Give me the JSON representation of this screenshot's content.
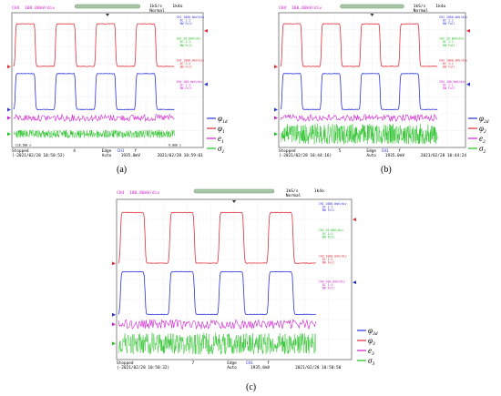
{
  "colors": {
    "ch1": "#2a34d8",
    "ch2": "#20c020",
    "ch3": "#e0303a",
    "ch4": "#d020d0",
    "grid": "#cfcfcf",
    "frame": "#555555",
    "bar": "#6a9a6a"
  },
  "panels": [
    {
      "id": "a",
      "caption": "(a)",
      "header": {
        "channel": "CH4",
        "scale": "100.00mV/div",
        "rate": "1kS/s",
        "points": "1k4o",
        "mode": "Normal"
      },
      "channel_info": [
        {
          "ch": "CH1",
          "line": "1000.0mV/div",
          "sub": "DC 1:1",
          "bw": "BW Full"
        },
        {
          "ch": "CH2",
          "line": "20.0mV/div",
          "sub": "DC 1:1",
          "bw": "BW Full"
        },
        {
          "ch": "CH3",
          "line": "1000.0mV/div",
          "sub": "DC 1:1",
          "bw": "BW Full"
        },
        {
          "ch": "CH4",
          "line": "100.0mV/div",
          "sub": "DC 1:1",
          "bw": "BW Full"
        }
      ],
      "corner_left": "-116.500 s",
      "corner_right": "6.000 s",
      "footer": {
        "state": "Stopped",
        "state_num": "4",
        "left_date": "2021/02/28 10:50:52",
        "trig": "Edge",
        "trig_ch": "CH1",
        "trig_sym": "f",
        "trig_mode": "Auto",
        "trig_val": "1935.0mV",
        "right_date": "2021/02/28 10:59:01"
      },
      "legend": [
        {
          "sym": "φ",
          "sub": "1d",
          "color": "#2a34d8"
        },
        {
          "sym": "φ",
          "sub": "1",
          "color": "#e0303a"
        },
        {
          "sym": "e",
          "sub": "1",
          "color": "#d020d0"
        },
        {
          "sym": "σ",
          "sub": "1",
          "color": "#20c020"
        }
      ]
    },
    {
      "id": "b",
      "caption": "(b)",
      "header": {
        "channel": "CH4",
        "scale": "100.00mV/div",
        "rate": "1kS/s",
        "points": "1k4o",
        "mode": "Normal"
      },
      "channel_info": [
        {
          "ch": "CH1",
          "line": "1000.0mV/div",
          "sub": "DC 1:1",
          "bw": "BW Full"
        },
        {
          "ch": "CH2",
          "line": "20.0mV/div",
          "sub": "DC 1:1",
          "bw": "BW Full"
        },
        {
          "ch": "CH3",
          "line": "1000.0mV/div",
          "sub": "DC 1:1",
          "bw": "BW Full"
        },
        {
          "ch": "CH4",
          "line": "100.0mV/div",
          "sub": "DC 1:1",
          "bw": "BW Full"
        }
      ],
      "corner_left": "",
      "corner_right": "",
      "footer": {
        "state": "Stopped",
        "state_num": "5",
        "left_date": "2021/02/28 10:44:16",
        "trig": "Edge",
        "trig_ch": "CH1",
        "trig_sym": "f",
        "trig_mode": "Auto",
        "trig_val": "1935.0mV",
        "right_date": "2021/02/28 10:44:24"
      },
      "legend": [
        {
          "sym": "φ",
          "sub": "2d",
          "color": "#2a34d8"
        },
        {
          "sym": "φ",
          "sub": "2",
          "color": "#e0303a"
        },
        {
          "sym": "e",
          "sub": "2",
          "color": "#d020d0"
        },
        {
          "sym": "σ",
          "sub": "2",
          "color": "#20c020"
        }
      ]
    },
    {
      "id": "c",
      "caption": "(c)",
      "header": {
        "channel": "CH4",
        "scale": "100.00mV/div",
        "rate": "1kS/s",
        "points": "1k4o",
        "mode": "Normal"
      },
      "channel_info": [
        {
          "ch": "CH1",
          "line": "1000.0mV/div",
          "sub": "DC 1:1",
          "bw": "BW Full"
        },
        {
          "ch": "CH2",
          "line": "20.0mV/div",
          "sub": "DC 1:1",
          "bw": "BW Full"
        },
        {
          "ch": "CH3",
          "line": "1000.0mV/div",
          "sub": "DC 1:1",
          "bw": "BW Full"
        },
        {
          "ch": "CH4",
          "line": "100.0mV/div",
          "sub": "DC 1:1",
          "bw": "BW Full"
        }
      ],
      "corner_left": "",
      "corner_right": "",
      "footer": {
        "state": "Stopped",
        "state_num": "7",
        "left_date": "2021/02/28 10:50:32",
        "trig": "Edge",
        "trig_ch": "CH1",
        "trig_sym": "f",
        "trig_mode": "Auto",
        "trig_val": "1935.0mV",
        "right_date": "2021/02/28 10:50:50"
      },
      "legend": [
        {
          "sym": "φ",
          "sub": "3d",
          "color": "#2a34d8"
        },
        {
          "sym": "φ",
          "sub": "3",
          "color": "#e0303a"
        },
        {
          "sym": "e",
          "sub": "3",
          "color": "#d020d0"
        },
        {
          "sym": "σ",
          "sub": "3",
          "color": "#20c020"
        }
      ]
    }
  ],
  "chart_data": [
    {
      "type": "line",
      "panel": "a",
      "series": [
        {
          "name": "φ1d",
          "color": "#2a34d8",
          "shape": "square",
          "periods": 4,
          "low": 0,
          "high": 1,
          "noise": 0.0
        },
        {
          "name": "φ1",
          "color": "#e0303a",
          "shape": "square",
          "periods": 4,
          "low": 0,
          "high": 1,
          "noise": 0.0
        },
        {
          "name": "e1",
          "color": "#d020d0",
          "shape": "noise",
          "level": 0,
          "noise": 0.05
        },
        {
          "name": "σ1",
          "color": "#20c020",
          "shape": "noise",
          "level": 0,
          "noise": 0.2
        }
      ]
    },
    {
      "type": "line",
      "panel": "b",
      "series": [
        {
          "name": "φ2d",
          "color": "#2a34d8",
          "shape": "square",
          "periods": 4,
          "low": 0,
          "high": 1,
          "noise": 0.0
        },
        {
          "name": "φ2",
          "color": "#e0303a",
          "shape": "square",
          "periods": 4,
          "low": 0,
          "high": 1,
          "noise": 0.0
        },
        {
          "name": "e2",
          "color": "#d020d0",
          "shape": "noise",
          "level": 0,
          "noise": 0.05
        },
        {
          "name": "σ2",
          "color": "#20c020",
          "shape": "noise",
          "level": 0,
          "noise": 0.5
        }
      ]
    },
    {
      "type": "line",
      "panel": "c",
      "series": [
        {
          "name": "φ3d",
          "color": "#2a34d8",
          "shape": "square",
          "periods": 4,
          "low": 0,
          "high": 1,
          "noise": 0.0
        },
        {
          "name": "φ3",
          "color": "#e0303a",
          "shape": "square",
          "periods": 4,
          "low": 0,
          "high": 1,
          "noise": 0.0
        },
        {
          "name": "e3",
          "color": "#d020d0",
          "shape": "noise",
          "level": 0,
          "noise": 0.06
        },
        {
          "name": "σ3",
          "color": "#20c020",
          "shape": "noise",
          "level": 0,
          "noise": 0.45
        }
      ]
    }
  ]
}
